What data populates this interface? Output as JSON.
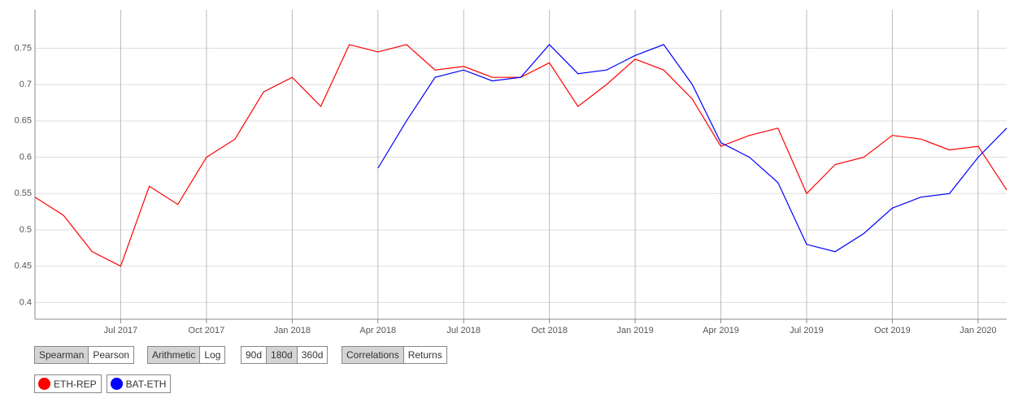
{
  "chart_data": {
    "type": "line",
    "x": [
      "2017-04",
      "2017-05",
      "2017-06",
      "2017-07",
      "2017-08",
      "2017-09",
      "2017-10",
      "2017-11",
      "2017-12",
      "2018-01",
      "2018-02",
      "2018-03",
      "2018-04",
      "2018-05",
      "2018-06",
      "2018-07",
      "2018-08",
      "2018-09",
      "2018-10",
      "2018-11",
      "2018-12",
      "2019-01",
      "2019-02",
      "2019-03",
      "2019-04",
      "2019-05",
      "2019-06",
      "2019-07",
      "2019-08",
      "2019-09",
      "2019-10",
      "2019-11",
      "2019-12",
      "2020-01",
      "2020-02"
    ],
    "series": [
      {
        "name": "ETH-REP",
        "color": "#ff0000",
        "values": [
          0.545,
          0.52,
          0.47,
          0.45,
          0.56,
          0.535,
          0.6,
          0.625,
          0.69,
          0.71,
          0.67,
          0.755,
          0.745,
          0.755,
          0.72,
          0.725,
          0.71,
          0.71,
          0.73,
          0.67,
          0.7,
          0.735,
          0.72,
          0.68,
          0.615,
          0.63,
          0.64,
          0.55,
          0.59,
          0.6,
          0.63,
          0.625,
          0.61,
          0.615,
          0.555
        ]
      },
      {
        "name": "BAT-ETH",
        "color": "#0000ff",
        "values": [
          null,
          null,
          null,
          null,
          null,
          null,
          null,
          null,
          null,
          null,
          null,
          null,
          0.585,
          0.65,
          0.71,
          0.72,
          0.705,
          0.71,
          0.755,
          0.715,
          0.72,
          0.74,
          0.755,
          0.7,
          0.62,
          0.6,
          0.565,
          0.48,
          0.47,
          0.495,
          0.53,
          0.545,
          0.55,
          0.6,
          0.64
        ]
      }
    ],
    "xlim": [
      "2017-04",
      "2020-02"
    ],
    "xticks": [
      {
        "value": "2017-07",
        "label": "Jul 2017"
      },
      {
        "value": "2017-10",
        "label": "Oct 2017"
      },
      {
        "value": "2018-01",
        "label": "Jan 2018"
      },
      {
        "value": "2018-04",
        "label": "Apr 2018"
      },
      {
        "value": "2018-07",
        "label": "Jul 2018"
      },
      {
        "value": "2018-10",
        "label": "Oct 2018"
      },
      {
        "value": "2019-01",
        "label": "Jan 2019"
      },
      {
        "value": "2019-04",
        "label": "Apr 2019"
      },
      {
        "value": "2019-07",
        "label": "Jul 2019"
      },
      {
        "value": "2019-10",
        "label": "Oct 2019"
      },
      {
        "value": "2020-01",
        "label": "Jan 2020"
      }
    ],
    "ylim": [
      0.377,
      0.803
    ],
    "yticks": [
      0.4,
      0.45,
      0.5,
      0.55,
      0.6,
      0.65,
      0.7,
      0.75
    ],
    "grid": true,
    "controls": [
      {
        "options": [
          "Spearman",
          "Pearson"
        ],
        "selected": 0
      },
      {
        "options": [
          "Arithmetic",
          "Log"
        ],
        "selected": 0
      },
      {
        "options": [
          "90d",
          "180d",
          "360d"
        ],
        "selected": 1
      },
      {
        "options": [
          "Correlations",
          "Returns"
        ],
        "selected": 0
      }
    ]
  }
}
